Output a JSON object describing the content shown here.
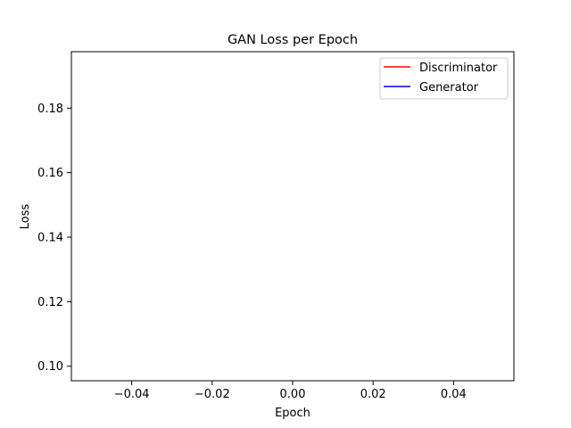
{
  "chart_data": {
    "type": "line",
    "title": "GAN Loss per Epoch",
    "xlabel": "Epoch",
    "ylabel": "Loss",
    "xlim": [
      -0.055,
      0.055
    ],
    "ylim": [
      0.0955,
      0.1975
    ],
    "xticks": [
      -0.04,
      -0.02,
      0.0,
      0.02,
      0.04
    ],
    "xtick_labels": [
      "−0.04",
      "−0.02",
      "0.00",
      "0.02",
      "0.04"
    ],
    "yticks": [
      0.1,
      0.12,
      0.14,
      0.16,
      0.18
    ],
    "ytick_labels": [
      "0.10",
      "0.12",
      "0.14",
      "0.16",
      "0.18"
    ],
    "grid": false,
    "legend_position": "top-right",
    "series": [
      {
        "name": "Discriminator",
        "color": "#ff0000",
        "x": [],
        "y": []
      },
      {
        "name": "Generator",
        "color": "#0000ff",
        "x": [],
        "y": []
      }
    ]
  }
}
